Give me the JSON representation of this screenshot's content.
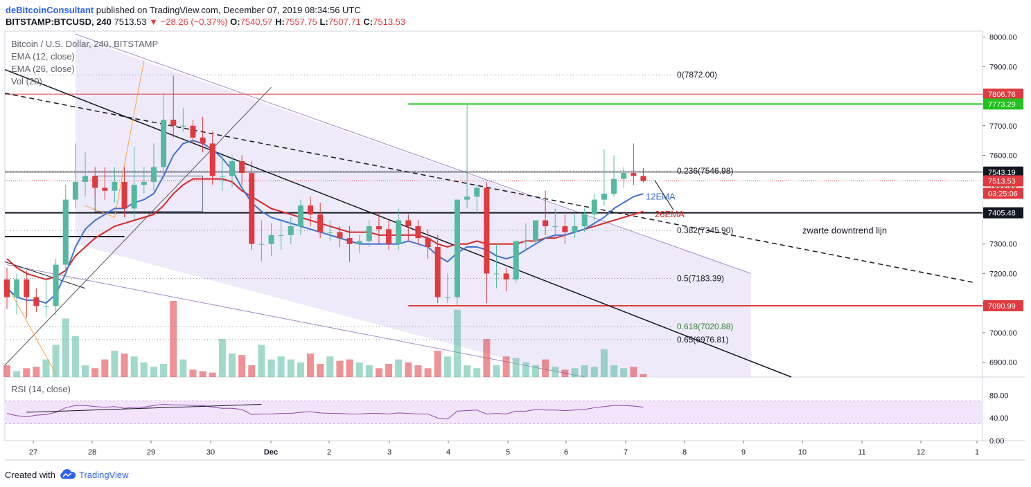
{
  "header": {
    "author": "deBitcoinConsultant",
    "published_text": " published on TradingView.com, December 07, 2019 08:34:56 UTC",
    "symbol": "BITSTAMP:BTCUSD, 240",
    "last": "7513.53",
    "change": "▼ −28.26 (−0.37%)",
    "o_label": "O:",
    "o_val": "7540.57",
    "h_label": "H:",
    "h_val": "7557.75",
    "l_label": "L:",
    "l_val": "7507.71",
    "c_label": "C:",
    "c_val": "7513.53"
  },
  "legend": {
    "title": "Bitcoin / U.S. Dollar, 240, BITSTAMP",
    "ema12": "EMA (12, close)",
    "ema26": "EMA (26, close)",
    "vol": "Vol (20)",
    "rsi": "RSI (14, close)"
  },
  "footer": {
    "created_with": "Created with",
    "brand": "TradingView"
  },
  "colors": {
    "up": "#53b9a0",
    "down": "#e0393e",
    "ema12": "#3f6fd1",
    "ema26": "#d62728",
    "green_line": "#22c21d",
    "channel_fill": "#ebe6f8",
    "channel_line": "#a58ac9",
    "rsi_line": "#8e44ad",
    "rsi_band": "#f1e4fb"
  },
  "chart_data": {
    "type": "candlestick",
    "price_axis": {
      "min": 6850,
      "max": 8020,
      "ticks": [
        8000,
        7900,
        7800,
        7700,
        7600,
        7500,
        7400,
        7300,
        7200,
        7100,
        7000,
        6900
      ],
      "tick_labels": [
        "8000.00",
        "7900.00",
        "7800.00",
        "7700.00",
        "7600.00",
        "7500.00",
        "7400.00",
        "7300.00",
        "7200.00",
        "7100.00",
        "7000.00",
        "6900.00"
      ]
    },
    "time_axis": {
      "labels": [
        "27",
        "28",
        "29",
        "30",
        "Dec",
        "2",
        "3",
        "4",
        "5",
        "6",
        "7",
        "8",
        "9",
        "10",
        "11",
        "12",
        "1"
      ]
    },
    "candles_open": [
      7180,
      7120,
      7180,
      7120,
      7090,
      7090,
      7230,
      7450,
      7510,
      7530,
      7490,
      7480,
      7510,
      7420,
      7500,
      7510,
      7560,
      7720,
      7700,
      7700,
      7660,
      7640,
      7530,
      7530,
      7580,
      7540,
      7300,
      7300,
      7330,
      7330,
      7360,
      7430,
      7400,
      7340,
      7340,
      7320,
      7300,
      7310,
      7360,
      7350,
      7300,
      7380,
      7360,
      7320,
      7290,
      7120,
      7120,
      7450,
      7460,
      7490,
      7200,
      7200,
      7180,
      7310,
      7310,
      7380,
      7360,
      7360,
      7340,
      7360,
      7400,
      7450,
      7470,
      7520,
      7540,
      7530
    ],
    "candles_close": [
      7120,
      7180,
      7120,
      7090,
      7090,
      7230,
      7450,
      7510,
      7530,
      7490,
      7480,
      7510,
      7420,
      7500,
      7510,
      7560,
      7720,
      7700,
      7700,
      7660,
      7640,
      7530,
      7530,
      7580,
      7540,
      7300,
      7300,
      7330,
      7330,
      7360,
      7430,
      7400,
      7340,
      7340,
      7320,
      7300,
      7310,
      7360,
      7350,
      7300,
      7380,
      7360,
      7320,
      7290,
      7120,
      7120,
      7450,
      7460,
      7490,
      7200,
      7200,
      7180,
      7310,
      7310,
      7380,
      7360,
      7360,
      7340,
      7360,
      7400,
      7450,
      7470,
      7520,
      7540,
      7530,
      7513
    ],
    "candles_high": [
      7220,
      7200,
      7210,
      7150,
      7180,
      7250,
      7500,
      7640,
      7610,
      7560,
      7560,
      7560,
      7560,
      7630,
      7560,
      7640,
      7810,
      7870,
      7760,
      7720,
      7730,
      7680,
      7600,
      7600,
      7600,
      7580,
      7380,
      7370,
      7380,
      7390,
      7450,
      7460,
      7440,
      7380,
      7360,
      7360,
      7330,
      7380,
      7410,
      7380,
      7420,
      7400,
      7380,
      7350,
      7330,
      7200,
      7200,
      7773,
      7500,
      7510,
      7300,
      7220,
      7240,
      7370,
      7370,
      7480,
      7420,
      7400,
      7400,
      7420,
      7470,
      7620,
      7600,
      7560,
      7640,
      7557
    ],
    "candles_low": [
      7080,
      7060,
      7050,
      7070,
      7050,
      7060,
      7200,
      7420,
      7460,
      7460,
      7450,
      7440,
      7390,
      7380,
      7470,
      7480,
      7520,
      7660,
      7680,
      7640,
      7610,
      7500,
      7480,
      7490,
      7500,
      7280,
      7240,
      7260,
      7280,
      7300,
      7330,
      7360,
      7320,
      7310,
      7290,
      7240,
      7270,
      7290,
      7300,
      7280,
      7280,
      7310,
      7300,
      7250,
      7100,
      7100,
      7090,
      7420,
      7400,
      7100,
      7150,
      7140,
      7170,
      7280,
      7300,
      7330,
      7320,
      7300,
      7320,
      7340,
      7380,
      7430,
      7460,
      7490,
      7500,
      7507
    ],
    "volume": [
      40,
      20,
      30,
      35,
      60,
      110,
      200,
      140,
      40,
      30,
      60,
      90,
      80,
      70,
      50,
      35,
      45,
      260,
      60,
      25,
      20,
      15,
      130,
      80,
      75,
      40,
      110,
      60,
      70,
      60,
      50,
      80,
      45,
      70,
      55,
      60,
      50,
      40,
      30,
      45,
      60,
      50,
      40,
      30,
      90,
      70,
      230,
      40,
      30,
      130,
      40,
      70,
      65,
      50,
      40,
      60,
      35,
      25,
      30,
      40,
      35,
      95,
      40,
      30,
      35,
      10
    ],
    "ema12": [
      7150,
      7120,
      7110,
      7110,
      7100,
      7130,
      7200,
      7290,
      7350,
      7380,
      7400,
      7420,
      7420,
      7440,
      7450,
      7470,
      7530,
      7600,
      7640,
      7650,
      7640,
      7620,
      7590,
      7550,
      7490,
      7440,
      7410,
      7390,
      7380,
      7370,
      7360,
      7350,
      7340,
      7330,
      7320,
      7310,
      7300,
      7300,
      7300,
      7300,
      7300,
      7310,
      7300,
      7290,
      7260,
      7240,
      7270,
      7290,
      7290,
      7280,
      7260,
      7250,
      7260,
      7280,
      7300,
      7320,
      7330,
      7330,
      7340,
      7350,
      7370,
      7390,
      7420,
      7440,
      7460,
      7470
    ],
    "ema26": [
      7250,
      7220,
      7200,
      7190,
      7180,
      7190,
      7210,
      7260,
      7290,
      7320,
      7340,
      7360,
      7370,
      7380,
      7390,
      7400,
      7430,
      7470,
      7500,
      7520,
      7520,
      7520,
      7520,
      7510,
      7480,
      7460,
      7440,
      7420,
      7410,
      7400,
      7390,
      7380,
      7370,
      7360,
      7350,
      7340,
      7340,
      7340,
      7330,
      7330,
      7330,
      7330,
      7330,
      7320,
      7300,
      7290,
      7300,
      7300,
      7310,
      7300,
      7300,
      7300,
      7300,
      7310,
      7310,
      7320,
      7320,
      7330,
      7340,
      7350,
      7360,
      7370,
      7380,
      7390,
      7400,
      7410
    ],
    "rsi": [
      48,
      44,
      42,
      45,
      46,
      50,
      58,
      62,
      62,
      60,
      59,
      60,
      57,
      59,
      59,
      62,
      64,
      63,
      63,
      62,
      62,
      59,
      57,
      57,
      55,
      46,
      47,
      47,
      48,
      48,
      50,
      51,
      49,
      48,
      48,
      47,
      47,
      48,
      48,
      47,
      49,
      48,
      47,
      47,
      40,
      38,
      52,
      53,
      54,
      47,
      48,
      47,
      52,
      52,
      55,
      54,
      54,
      53,
      54,
      55,
      58,
      60,
      62,
      62,
      61,
      59
    ],
    "rsi_axis": {
      "min": 0,
      "max": 100,
      "ticks": [
        80,
        40,
        0
      ],
      "tick_labels": [
        "80.00",
        "40.00",
        "0.00"
      ]
    },
    "levels": [
      {
        "price": 7806.76,
        "label": "7806.76",
        "color": "#e0393e",
        "badge": "#e0393e"
      },
      {
        "price": 7773.29,
        "label": "7773.29",
        "color": "#22c21d",
        "badge": "#22c21d"
      },
      {
        "price": 7543.19,
        "label": "7543.19",
        "color": "#131722",
        "badge": "#131722"
      },
      {
        "price": 7513.53,
        "label": "7513.53",
        "color": "#e0393e",
        "badge": "#e0393e"
      },
      {
        "price": 7405.48,
        "label": "7405.48",
        "color": "#131722",
        "badge": "#131722"
      },
      {
        "price": 7090.99,
        "label": "7090.99",
        "color": "#e0393e",
        "badge": "#e0393e"
      }
    ],
    "countdown": "03:25:06",
    "fib": [
      {
        "label": "0(7872.00)",
        "price": 7872.0
      },
      {
        "label": "0.236(7546.98)",
        "price": 7546.98
      },
      {
        "label": "0.382(7345.90)",
        "price": 7345.9
      },
      {
        "label": "0.5(7183.39)",
        "price": 7183.39
      },
      {
        "label": "0.618(7020.88)",
        "price": 7020.88
      },
      {
        "label": "0.65(6976.81)",
        "price": 6976.81
      }
    ],
    "annotations": {
      "ema12_label": "12EMA",
      "ema26_label": "26EMA",
      "downtrend": "zwarte downtrend lijn"
    }
  }
}
